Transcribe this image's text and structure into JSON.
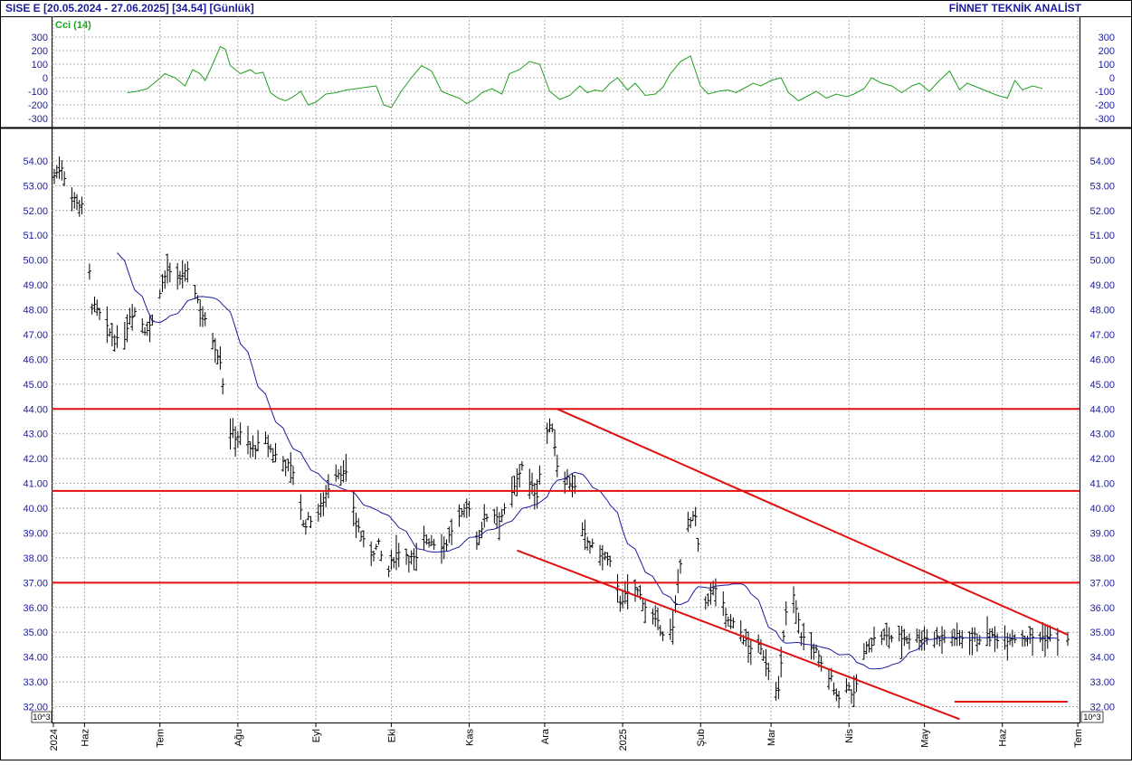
{
  "header": {
    "left": "SISE  E  [20.05.2024 - 27.06.2025]  [34.54]  [Günlük]",
    "right": "FİNNET TEKNİK ANALİST"
  },
  "chart_data": [
    {
      "type": "line",
      "title": "Cci (14)",
      "ylim": [
        -350,
        310
      ],
      "yticks": [
        "300",
        "200",
        "100",
        "0",
        "-100",
        "-200",
        "-300"
      ],
      "yticks_values": [
        300,
        200,
        100,
        0,
        -100,
        -200,
        -300
      ],
      "grid": true,
      "series": [
        {
          "name": "Cci (14)",
          "color": "#22a022",
          "x_days": [
            29,
            33,
            37,
            41,
            44,
            48,
            52,
            55,
            58,
            60,
            63,
            66,
            68,
            70,
            74,
            78,
            80,
            83,
            86,
            89,
            92,
            95,
            98,
            101,
            104,
            108,
            112,
            116,
            120,
            124,
            128,
            131,
            134,
            138,
            142,
            146,
            150,
            154,
            158,
            161,
            164,
            167,
            170,
            174,
            178,
            181,
            185,
            189,
            193,
            197,
            201,
            205,
            209,
            212,
            215,
            218,
            221,
            224,
            228,
            231,
            235,
            239,
            242,
            245,
            249,
            253,
            257,
            260,
            264,
            268,
            271,
            274,
            278,
            281,
            285,
            289,
            292,
            296,
            300,
            303,
            307,
            311,
            315,
            318,
            322,
            325,
            329,
            333,
            337,
            341,
            344,
            348,
            352,
            356,
            360,
            363,
            367,
            371,
            375,
            379,
            382,
            385,
            389,
            393
          ],
          "values": [
            -110,
            -100,
            -80,
            -20,
            30,
            0,
            -60,
            60,
            30,
            -20,
            100,
            230,
            210,
            90,
            30,
            60,
            30,
            40,
            -110,
            -150,
            -170,
            -140,
            -100,
            -200,
            -180,
            -120,
            -110,
            -90,
            -80,
            -70,
            -60,
            -200,
            -220,
            -100,
            0,
            90,
            50,
            -100,
            -130,
            -150,
            -190,
            -160,
            -110,
            -80,
            -120,
            30,
            60,
            120,
            100,
            -100,
            -160,
            -130,
            -60,
            -110,
            -90,
            -100,
            -40,
            0,
            -90,
            -40,
            -130,
            -120,
            -70,
            30,
            120,
            160,
            -60,
            -120,
            -100,
            -90,
            -110,
            -80,
            -40,
            -60,
            -20,
            0,
            -110,
            -170,
            -130,
            -100,
            -150,
            -120,
            -140,
            -120,
            -80,
            0,
            -40,
            -60,
            -110,
            -60,
            -40,
            -100,
            -20,
            50,
            -90,
            -40,
            -70,
            -100,
            -130,
            -150,
            -20,
            -90,
            -60,
            -80
          ]
        }
      ]
    },
    {
      "type": "candlestick",
      "title": "",
      "ylim": [
        31.4,
        55.2
      ],
      "yticks": [
        "54.00",
        "53.00",
        "52.00",
        "51.00",
        "50.00",
        "49.00",
        "48.00",
        "47.00",
        "46.00",
        "45.00",
        "44.00",
        "43.00",
        "42.00",
        "41.00",
        "40.00",
        "39.00",
        "38.00",
        "37.00",
        "36.00",
        "35.00",
        "34.00",
        "33.00",
        "32.00"
      ],
      "yticks_values": [
        54,
        53,
        52,
        51,
        50,
        49,
        48,
        47,
        46,
        45,
        44,
        43,
        42,
        41,
        40,
        39,
        38,
        37,
        36,
        35,
        34,
        33,
        32
      ],
      "scale_note": "10^3",
      "grid": true,
      "horizontal_levels": [
        44.0,
        40.7,
        37.0
      ],
      "support_line": {
        "x1": "2025-05-13",
        "x2": "2025-06-27",
        "y": 32.2
      },
      "channel_upper": {
        "x1": "2024-12-06",
        "y1": 44.0,
        "x2": "2025-06-27",
        "y2": 34.9
      },
      "channel_lower": {
        "x1": "2024-11-20",
        "y1": 38.3,
        "x2": "2025-05-15",
        "y2": 31.5
      },
      "ma_color": "#1c1c9c",
      "bar_color": "#000000",
      "level_color": "#e01010",
      "price_keypoints_days": [
        0,
        3,
        6,
        9,
        12,
        15,
        18,
        21,
        24,
        27,
        30,
        33,
        36,
        39,
        42,
        45,
        48,
        51,
        54,
        57,
        60,
        63,
        66,
        69,
        72,
        75,
        78,
        81,
        84,
        87,
        90,
        93,
        96,
        99,
        102,
        105,
        108,
        111,
        114,
        117,
        120,
        123,
        126,
        129,
        132,
        135,
        138,
        141,
        144,
        147,
        150,
        153,
        156,
        159,
        162,
        165,
        168,
        171,
        174,
        177,
        180,
        183,
        186,
        189,
        192,
        195,
        198,
        201,
        204,
        207,
        210,
        213,
        216,
        219,
        222,
        225,
        228,
        231,
        234,
        237,
        240,
        243,
        246,
        249,
        252,
        255,
        258,
        261,
        264,
        267,
        270,
        273,
        276,
        279,
        282,
        285,
        288,
        291,
        294,
        297,
        300,
        303,
        306,
        309,
        312,
        315,
        318,
        321,
        324,
        327,
        330,
        333,
        336,
        339,
        342,
        345,
        348,
        351,
        354,
        357,
        360,
        363,
        366,
        369,
        372,
        375,
        378,
        381,
        384,
        387,
        390,
        393,
        396,
        399,
        402
      ],
      "price_keypoints": [
        53.4,
        53.8,
        52.6,
        52.4,
        52.0,
        48.2,
        47.8,
        47.2,
        46.8,
        46.5,
        47.8,
        48.0,
        47.2,
        47.5,
        48.8,
        49.6,
        49.0,
        49.4,
        49.5,
        48.4,
        47.5,
        46.8,
        46.0,
        43.2,
        42.9,
        43.0,
        42.4,
        42.5,
        42.7,
        42.2,
        42.0,
        41.7,
        41.4,
        39.3,
        39.6,
        39.8,
        40.6,
        41.4,
        41.5,
        41.2,
        39.5,
        38.6,
        38.2,
        38.5,
        37.2,
        38.0,
        38.5,
        38.0,
        37.9,
        38.8,
        38.7,
        38.5,
        38.6,
        39.4,
        39.7,
        40.1,
        38.6,
        39.6,
        39.9,
        39.6,
        40.0,
        40.8,
        41.8,
        40.9,
        40.6,
        43.0,
        43.3,
        41.0,
        41.2,
        40.8,
        39.0,
        38.5,
        38.3,
        38.0,
        37.6,
        36.3,
        36.5,
        36.8,
        36.3,
        35.6,
        35.3,
        34.9,
        35.1,
        37.9,
        39.4,
        39.6,
        36.0,
        36.6,
        36.9,
        35.6,
        35.3,
        35.0,
        34.4,
        34.5,
        34.1,
        33.3,
        32.6,
        35.8,
        36.4,
        34.9,
        34.5,
        34.2,
        33.4,
        33.1,
        32.3,
        33.0,
        32.4,
        34.0,
        34.5,
        34.8,
        34.8,
        34.8,
        34.8,
        34.8,
        34.8,
        34.8,
        34.8,
        34.8,
        34.8,
        34.8,
        34.8,
        34.8,
        34.8,
        34.8,
        34.8,
        34.8,
        34.8,
        34.8,
        34.8,
        34.8,
        34.8,
        34.8,
        34.8,
        34.8
      ],
      "x_axis": {
        "labels": [
          "2024",
          "Haz",
          "Tem",
          "Ağu",
          "Eyl",
          "Eki",
          "Kas",
          "Ara",
          "2025",
          "Şub",
          "Mar",
          "Nis",
          "May",
          "Haz",
          "Tem"
        ],
        "label_dates": [
          "2024-05-20",
          "2024-06-01",
          "2024-07-01",
          "2024-08-01",
          "2024-09-01",
          "2024-10-01",
          "2024-11-01",
          "2024-12-01",
          "2025-01-01",
          "2025-02-01",
          "2025-03-01",
          "2025-04-01",
          "2025-05-01",
          "2025-06-01",
          "2025-07-01"
        ],
        "start": "2024-05-20",
        "end": "2025-06-27"
      }
    }
  ]
}
